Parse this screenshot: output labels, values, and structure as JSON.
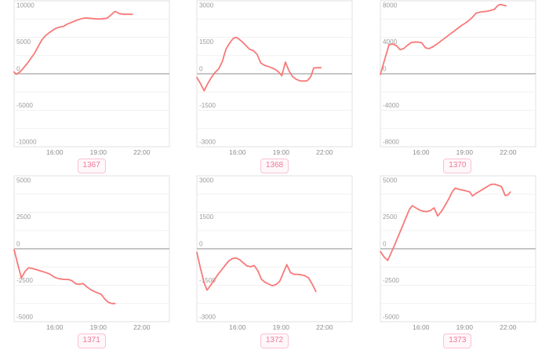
{
  "style": {
    "line_color": "#f87979",
    "grid_color": "#f1f1f1",
    "zero_line_color": "#c6c6c6",
    "panel_border_color": "#e2e2e2",
    "y_tick_label_color": "#9b9b9b",
    "x_tick_label_color": "#8c8c8c",
    "badge_text_color": "#ee7a9d",
    "badge_border_color": "#f8c3d3",
    "badge_bg_color": "#fff7f9"
  },
  "chart_data": [
    {
      "type": "line",
      "badge": "1367",
      "x_domain": [
        13.2,
        23.9
      ],
      "x_ticks": [
        {
          "value": 16,
          "label": "16:00"
        },
        {
          "value": 19,
          "label": "19:00"
        },
        {
          "value": 22,
          "label": "22:00"
        }
      ],
      "ylim": [
        -10000,
        10000
      ],
      "y_label_ticks": [
        10000,
        5000,
        0,
        -5000,
        -10000
      ],
      "grid_step": 2500,
      "points": [
        [
          13.2,
          250
        ],
        [
          13.35,
          -60
        ],
        [
          13.6,
          250
        ],
        [
          13.85,
          800
        ],
        [
          14.1,
          1400
        ],
        [
          14.35,
          2100
        ],
        [
          14.6,
          2800
        ],
        [
          14.85,
          3700
        ],
        [
          15.1,
          4600
        ],
        [
          15.35,
          5200
        ],
        [
          15.6,
          5600
        ],
        [
          15.85,
          5950
        ],
        [
          16.1,
          6250
        ],
        [
          16.35,
          6400
        ],
        [
          16.6,
          6500
        ],
        [
          16.85,
          6800
        ],
        [
          17.1,
          7000
        ],
        [
          17.35,
          7200
        ],
        [
          17.6,
          7400
        ],
        [
          17.85,
          7550
        ],
        [
          18.1,
          7650
        ],
        [
          18.4,
          7600
        ],
        [
          18.7,
          7550
        ],
        [
          19.0,
          7500
        ],
        [
          19.3,
          7550
        ],
        [
          19.6,
          7600
        ],
        [
          19.9,
          8100
        ],
        [
          20.15,
          8550
        ],
        [
          20.45,
          8250
        ],
        [
          20.75,
          8150
        ],
        [
          21.05,
          8150
        ],
        [
          21.35,
          8150
        ]
      ]
    },
    {
      "type": "line",
      "badge": "1368",
      "x_domain": [
        13.2,
        23.9
      ],
      "x_ticks": [
        {
          "value": 16,
          "label": "16:00"
        },
        {
          "value": 19,
          "label": "19:00"
        },
        {
          "value": 22,
          "label": "22:00"
        }
      ],
      "ylim": [
        -3000,
        3000
      ],
      "y_label_ticks": [
        3000,
        1500,
        0,
        -1500,
        -3000
      ],
      "grid_step": 750,
      "points": [
        [
          13.2,
          -150
        ],
        [
          13.45,
          -400
        ],
        [
          13.7,
          -700
        ],
        [
          13.95,
          -400
        ],
        [
          14.2,
          -150
        ],
        [
          14.45,
          50
        ],
        [
          14.7,
          200
        ],
        [
          14.95,
          500
        ],
        [
          15.2,
          1000
        ],
        [
          15.45,
          1250
        ],
        [
          15.7,
          1450
        ],
        [
          15.9,
          1500
        ],
        [
          16.1,
          1425
        ],
        [
          16.35,
          1300
        ],
        [
          16.6,
          1150
        ],
        [
          16.85,
          1000
        ],
        [
          17.1,
          950
        ],
        [
          17.35,
          800
        ],
        [
          17.6,
          450
        ],
        [
          17.85,
          350
        ],
        [
          18.1,
          300
        ],
        [
          18.35,
          250
        ],
        [
          18.6,
          180
        ],
        [
          18.85,
          60
        ],
        [
          19.05,
          -80
        ],
        [
          19.3,
          480
        ],
        [
          19.55,
          120
        ],
        [
          19.8,
          -120
        ],
        [
          20.05,
          -230
        ],
        [
          20.3,
          -290
        ],
        [
          20.55,
          -300
        ],
        [
          20.8,
          -290
        ],
        [
          21.05,
          -120
        ],
        [
          21.25,
          240
        ],
        [
          21.5,
          250
        ],
        [
          21.75,
          250
        ]
      ]
    },
    {
      "type": "line",
      "badge": "1370",
      "x_domain": [
        13.2,
        23.9
      ],
      "x_ticks": [
        {
          "value": 16,
          "label": "16:00"
        },
        {
          "value": 19,
          "label": "19:00"
        },
        {
          "value": 22,
          "label": "22:00"
        }
      ],
      "ylim": [
        -8000,
        8000
      ],
      "y_label_ticks": [
        8000,
        4000,
        0,
        -4000,
        -8000
      ],
      "grid_step": 2000,
      "points": [
        [
          13.2,
          -80
        ],
        [
          13.5,
          1600
        ],
        [
          13.8,
          3200
        ],
        [
          14.05,
          3250
        ],
        [
          14.3,
          3100
        ],
        [
          14.55,
          2650
        ],
        [
          14.8,
          2750
        ],
        [
          15.05,
          3100
        ],
        [
          15.3,
          3400
        ],
        [
          15.55,
          3480
        ],
        [
          15.8,
          3470
        ],
        [
          16.05,
          3400
        ],
        [
          16.3,
          2850
        ],
        [
          16.55,
          2750
        ],
        [
          16.8,
          2950
        ],
        [
          17.05,
          3200
        ],
        [
          17.3,
          3500
        ],
        [
          17.55,
          3800
        ],
        [
          17.8,
          4100
        ],
        [
          18.05,
          4400
        ],
        [
          18.3,
          4700
        ],
        [
          18.55,
          5000
        ],
        [
          18.8,
          5300
        ],
        [
          19.05,
          5550
        ],
        [
          19.3,
          5850
        ],
        [
          19.55,
          6200
        ],
        [
          19.8,
          6650
        ],
        [
          20.05,
          6750
        ],
        [
          20.3,
          6800
        ],
        [
          20.55,
          6850
        ],
        [
          20.8,
          6950
        ],
        [
          21.05,
          7050
        ],
        [
          21.3,
          7500
        ],
        [
          21.5,
          7600
        ],
        [
          21.7,
          7500
        ],
        [
          21.85,
          7450
        ]
      ]
    },
    {
      "type": "line",
      "badge": "1371",
      "x_domain": [
        13.2,
        23.9
      ],
      "x_ticks": [
        {
          "value": 16,
          "label": "16:00"
        },
        {
          "value": 19,
          "label": "19:00"
        },
        {
          "value": 22,
          "label": "22:00"
        }
      ],
      "ylim": [
        -5000,
        5000
      ],
      "y_label_ticks": [
        5000,
        2500,
        0,
        -2500,
        -5000
      ],
      "grid_step": 1250,
      "points": [
        [
          13.2,
          -60
        ],
        [
          13.45,
          -1050
        ],
        [
          13.7,
          -2000
        ],
        [
          13.95,
          -1550
        ],
        [
          14.2,
          -1300
        ],
        [
          14.45,
          -1350
        ],
        [
          14.7,
          -1420
        ],
        [
          14.95,
          -1500
        ],
        [
          15.2,
          -1570
        ],
        [
          15.45,
          -1650
        ],
        [
          15.7,
          -1760
        ],
        [
          15.95,
          -1930
        ],
        [
          16.2,
          -2030
        ],
        [
          16.45,
          -2080
        ],
        [
          16.7,
          -2100
        ],
        [
          16.95,
          -2100
        ],
        [
          17.2,
          -2200
        ],
        [
          17.45,
          -2400
        ],
        [
          17.7,
          -2430
        ],
        [
          17.95,
          -2380
        ],
        [
          18.2,
          -2600
        ],
        [
          18.45,
          -2780
        ],
        [
          18.7,
          -2920
        ],
        [
          18.95,
          -3020
        ],
        [
          19.2,
          -3120
        ],
        [
          19.45,
          -3450
        ],
        [
          19.7,
          -3680
        ],
        [
          19.95,
          -3750
        ],
        [
          20.15,
          -3750
        ]
      ]
    },
    {
      "type": "line",
      "badge": "1372",
      "x_domain": [
        13.2,
        23.9
      ],
      "x_ticks": [
        {
          "value": 16,
          "label": "16:00"
        },
        {
          "value": 19,
          "label": "19:00"
        },
        {
          "value": 22,
          "label": "22:00"
        }
      ],
      "ylim": [
        -3000,
        3000
      ],
      "y_label_ticks": [
        3000,
        1500,
        0,
        -1500,
        -3000
      ],
      "grid_step": 750,
      "points": [
        [
          13.2,
          -150
        ],
        [
          13.45,
          -800
        ],
        [
          13.7,
          -1400
        ],
        [
          13.9,
          -1700
        ],
        [
          14.15,
          -1500
        ],
        [
          14.4,
          -1280
        ],
        [
          14.65,
          -1060
        ],
        [
          14.9,
          -870
        ],
        [
          15.15,
          -680
        ],
        [
          15.4,
          -500
        ],
        [
          15.65,
          -400
        ],
        [
          15.9,
          -380
        ],
        [
          16.15,
          -450
        ],
        [
          16.4,
          -580
        ],
        [
          16.65,
          -700
        ],
        [
          16.9,
          -740
        ],
        [
          17.15,
          -690
        ],
        [
          17.4,
          -900
        ],
        [
          17.65,
          -1250
        ],
        [
          17.9,
          -1380
        ],
        [
          18.15,
          -1450
        ],
        [
          18.4,
          -1520
        ],
        [
          18.65,
          -1470
        ],
        [
          18.9,
          -1350
        ],
        [
          19.15,
          -1000
        ],
        [
          19.4,
          -650
        ],
        [
          19.65,
          -980
        ],
        [
          19.9,
          -1050
        ],
        [
          20.15,
          -1050
        ],
        [
          20.4,
          -1070
        ],
        [
          20.65,
          -1110
        ],
        [
          20.9,
          -1200
        ],
        [
          21.15,
          -1450
        ],
        [
          21.4,
          -1750
        ]
      ]
    },
    {
      "type": "line",
      "badge": "1373",
      "x_domain": [
        13.2,
        23.9
      ],
      "x_ticks": [
        {
          "value": 16,
          "label": "16:00"
        },
        {
          "value": 19,
          "label": "19:00"
        },
        {
          "value": 22,
          "label": "22:00"
        }
      ],
      "ylim": [
        -5000,
        5000
      ],
      "y_label_ticks": [
        5000,
        2500,
        0,
        -2500,
        -5000
      ],
      "grid_step": 1250,
      "points": [
        [
          13.2,
          -200
        ],
        [
          13.45,
          -550
        ],
        [
          13.7,
          -800
        ],
        [
          13.95,
          -250
        ],
        [
          14.2,
          300
        ],
        [
          14.45,
          900
        ],
        [
          14.7,
          1500
        ],
        [
          14.95,
          2100
        ],
        [
          15.2,
          2700
        ],
        [
          15.4,
          2950
        ],
        [
          15.65,
          2800
        ],
        [
          15.9,
          2650
        ],
        [
          16.15,
          2570
        ],
        [
          16.4,
          2550
        ],
        [
          16.65,
          2620
        ],
        [
          16.9,
          2800
        ],
        [
          17.15,
          2250
        ],
        [
          17.4,
          2550
        ],
        [
          17.65,
          2950
        ],
        [
          17.9,
          3400
        ],
        [
          18.15,
          3900
        ],
        [
          18.35,
          4150
        ],
        [
          18.6,
          4080
        ],
        [
          18.85,
          4020
        ],
        [
          19.1,
          3970
        ],
        [
          19.35,
          3900
        ],
        [
          19.55,
          3620
        ],
        [
          19.8,
          3800
        ],
        [
          20.05,
          3950
        ],
        [
          20.3,
          4100
        ],
        [
          20.55,
          4250
        ],
        [
          20.8,
          4400
        ],
        [
          21.05,
          4430
        ],
        [
          21.3,
          4350
        ],
        [
          21.55,
          4250
        ],
        [
          21.8,
          3650
        ],
        [
          22.0,
          3700
        ],
        [
          22.15,
          3880
        ]
      ]
    }
  ]
}
